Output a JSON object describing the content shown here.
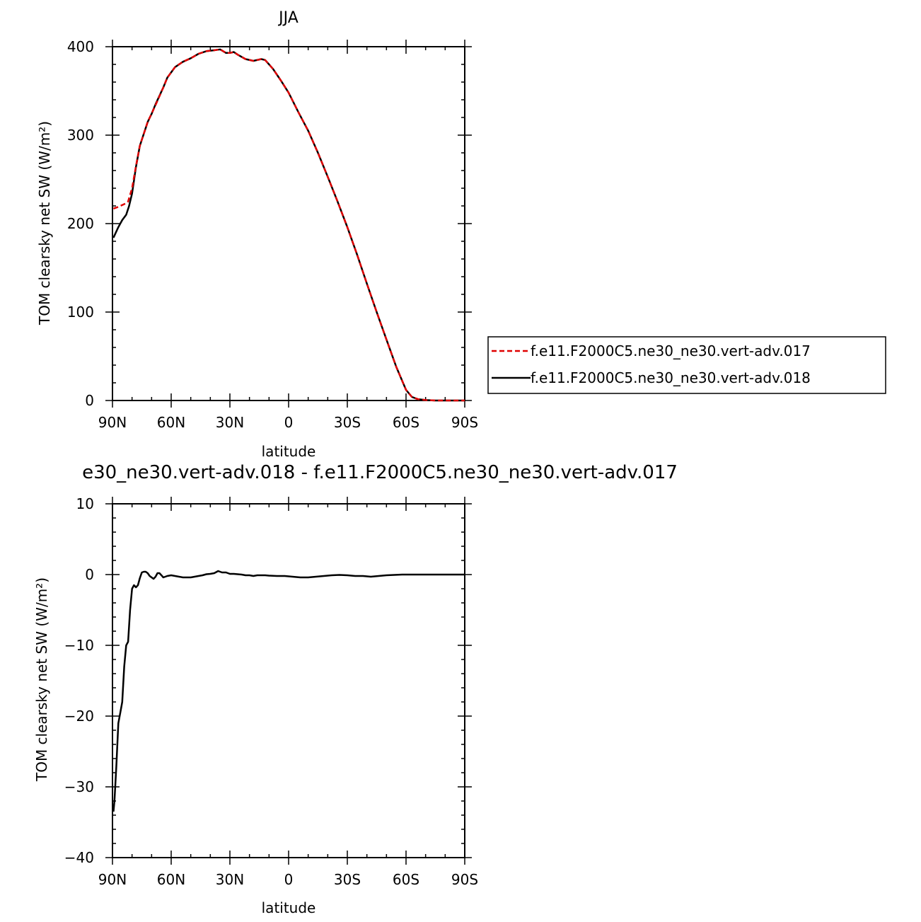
{
  "chart_data": [
    {
      "type": "line",
      "title": "JJA",
      "xlabel": "latitude",
      "ylabel": "TOM clearsky net SW (W/m²)",
      "xlim": [
        90,
        -90
      ],
      "ylim": [
        0,
        400
      ],
      "x_ticks": [
        {
          "value": 90,
          "label": "90N"
        },
        {
          "value": 60,
          "label": "60N"
        },
        {
          "value": 30,
          "label": "30N"
        },
        {
          "value": 0,
          "label": "0"
        },
        {
          "value": -30,
          "label": "30S"
        },
        {
          "value": -60,
          "label": "60S"
        },
        {
          "value": -90,
          "label": "90S"
        }
      ],
      "y_ticks": [
        {
          "value": 0,
          "label": "0"
        },
        {
          "value": 100,
          "label": "100"
        },
        {
          "value": 200,
          "label": "200"
        },
        {
          "value": 300,
          "label": "300"
        },
        {
          "value": 400,
          "label": "400"
        }
      ],
      "legend_position": "right",
      "series": [
        {
          "name": "f.e11.F2000C5.ne30_ne30.vert-adv.017",
          "color": "#e00000",
          "dash": true,
          "x": [
            89.5,
            87,
            84,
            82,
            80,
            78,
            76,
            72,
            68,
            64,
            62,
            58,
            54,
            50,
            46,
            42,
            38,
            35,
            32,
            30,
            28,
            26,
            22,
            18,
            14,
            12,
            8,
            4,
            0,
            -5,
            -10,
            -15,
            -20,
            -25,
            -30,
            -35,
            -40,
            -45,
            -50,
            -55,
            -60,
            -63,
            -66,
            -70,
            -75,
            -80,
            -85,
            -90
          ],
          "y": [
            217,
            219,
            222,
            225,
            240,
            265,
            288,
            315,
            334,
            354,
            365,
            377,
            383,
            387,
            392,
            395,
            396,
            397,
            393,
            393,
            394,
            391,
            386,
            384,
            386,
            385,
            375,
            362,
            348,
            326,
            305,
            280,
            253,
            225,
            196,
            165,
            132,
            100,
            69,
            38,
            12,
            4,
            1.5,
            0.5,
            0,
            0,
            0,
            0
          ]
        },
        {
          "name": "f.e11.F2000C5.ne30_ne30.vert-adv.018",
          "color": "#000000",
          "dash": false,
          "x": [
            89.5,
            88.5,
            87,
            85,
            83,
            81.5,
            80,
            78,
            76,
            72,
            70,
            68,
            64,
            62,
            58,
            54,
            50,
            46,
            42,
            38,
            35,
            32,
            30,
            28,
            26,
            22,
            18,
            14,
            12,
            8,
            4,
            0,
            -5,
            -10,
            -15,
            -20,
            -25,
            -30,
            -35,
            -40,
            -45,
            -50,
            -55,
            -60,
            -63,
            -66,
            -70,
            -75,
            -80,
            -85,
            -90
          ],
          "y": [
            184,
            189,
            196,
            204,
            210,
            220,
            234,
            264,
            288,
            315,
            324,
            335,
            354,
            365,
            377,
            383,
            387,
            392,
            395,
            396,
            397,
            393,
            393,
            394,
            391,
            386,
            384,
            386,
            385,
            375,
            362,
            348,
            326,
            305,
            280,
            253,
            225,
            196,
            165,
            132,
            100,
            69,
            38,
            12,
            4,
            1.5,
            0.5,
            0,
            0,
            0,
            0
          ]
        }
      ]
    },
    {
      "type": "line",
      "title": "e30_ne30.vert-adv.018 - f.e11.F2000C5.ne30_ne30.vert-adv.017",
      "xlabel": "latitude",
      "ylabel": "TOM clearsky net SW (W/m²)",
      "xlim": [
        90,
        -90
      ],
      "ylim": [
        -40,
        10
      ],
      "x_ticks": [
        {
          "value": 90,
          "label": "90N"
        },
        {
          "value": 60,
          "label": "60N"
        },
        {
          "value": 30,
          "label": "30N"
        },
        {
          "value": 0,
          "label": "0"
        },
        {
          "value": -30,
          "label": "30S"
        },
        {
          "value": -60,
          "label": "60S"
        },
        {
          "value": -90,
          "label": "90S"
        }
      ],
      "y_ticks": [
        {
          "value": -40,
          "label": "−40"
        },
        {
          "value": -30,
          "label": "−30"
        },
        {
          "value": -20,
          "label": "−20"
        },
        {
          "value": -10,
          "label": "−10"
        },
        {
          "value": 0,
          "label": "0"
        },
        {
          "value": 10,
          "label": "10"
        }
      ],
      "series": [
        {
          "color": "#000000",
          "dash": false,
          "x": [
            89.5,
            89,
            88,
            87,
            86,
            85,
            84,
            83,
            82,
            81,
            80,
            79,
            78,
            77,
            76,
            75,
            74,
            73,
            72,
            71,
            70,
            69,
            68,
            67,
            66,
            65,
            64,
            63,
            62,
            60,
            58,
            56,
            54,
            52,
            50,
            48,
            46,
            44,
            42,
            40,
            38,
            36,
            34,
            32,
            30,
            28,
            26,
            24,
            22,
            20,
            18,
            16,
            14,
            12,
            10,
            6,
            2,
            -2,
            -6,
            -10,
            -14,
            -18,
            -22,
            -26,
            -30,
            -34,
            -38,
            -42,
            -46,
            -50,
            -54,
            -58,
            -62,
            -66,
            -70,
            -75,
            -80,
            -85,
            -90
          ],
          "y": [
            -33.5,
            -32,
            -27,
            -21,
            -19.5,
            -18,
            -13,
            -10,
            -9.5,
            -5,
            -2,
            -1.5,
            -1.8,
            -1.5,
            -0.5,
            0.3,
            0.4,
            0.4,
            0.2,
            -0.2,
            -0.4,
            -0.6,
            -0.3,
            0.2,
            0.2,
            -0.1,
            -0.4,
            -0.3,
            -0.2,
            -0.1,
            -0.2,
            -0.3,
            -0.4,
            -0.4,
            -0.4,
            -0.3,
            -0.2,
            -0.1,
            0.05,
            0.1,
            0.2,
            0.5,
            0.3,
            0.3,
            0.1,
            0.1,
            0.05,
            0,
            -0.1,
            -0.1,
            -0.2,
            -0.1,
            -0.1,
            -0.1,
            -0.15,
            -0.2,
            -0.2,
            -0.3,
            -0.4,
            -0.4,
            -0.3,
            -0.2,
            -0.1,
            -0.05,
            -0.1,
            -0.2,
            -0.2,
            -0.3,
            -0.2,
            -0.1,
            -0.05,
            0,
            0,
            0,
            0,
            0,
            0,
            0,
            0
          ]
        }
      ]
    }
  ]
}
